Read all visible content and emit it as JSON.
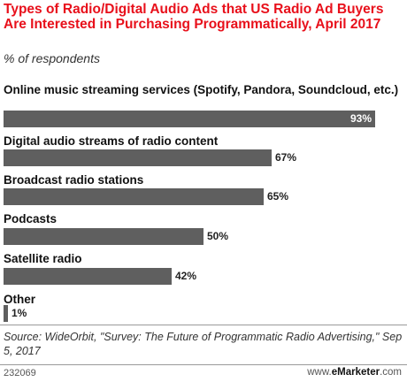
{
  "chart_data": {
    "type": "bar",
    "orientation": "horizontal",
    "title": "Types of Radio/Digital Audio Ads that US Radio Ad Buyers Are Interested in Purchasing Programmatically, April 2017",
    "subtitle": "% of respondents",
    "categories": [
      "Online music streaming services (Spotify, Pandora, Soundcloud, etc.)",
      "Digital audio streams of radio content",
      "Broadcast radio stations",
      "Podcasts",
      "Satellite radio",
      "Other"
    ],
    "values": [
      93,
      67,
      65,
      50,
      42,
      1
    ],
    "value_labels": [
      "93%",
      "67%",
      "65%",
      "50%",
      "42%",
      "1%"
    ],
    "xlim": [
      0,
      100
    ],
    "grid": false,
    "bar_color": "#5f5f5f"
  },
  "source": "Source: WideOrbit, \"Survey: The Future of Programmatic Radio Advertising,\" Sep 5, 2017",
  "footer": {
    "chart_id": "232069",
    "site_prefix": "www.",
    "site_brand": "eMarketer",
    "site_suffix": ".com"
  },
  "colors": {
    "title": "#e8101b",
    "bar": "#5f5f5f"
  }
}
